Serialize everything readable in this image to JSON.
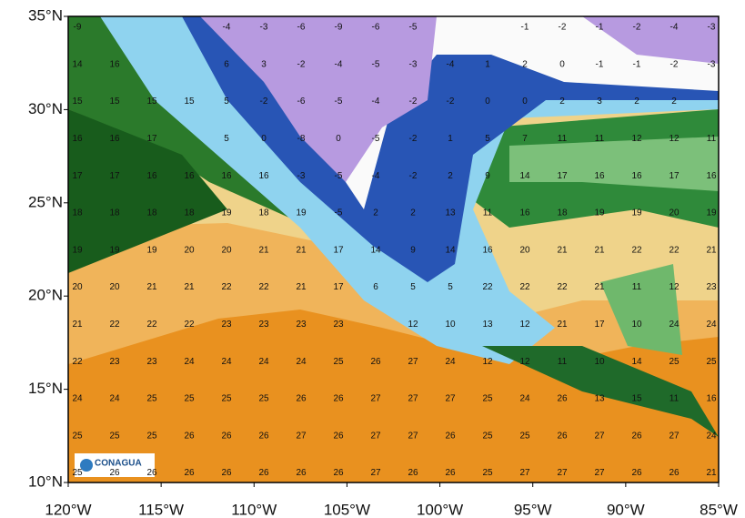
{
  "map": {
    "lat_ticks": [
      "35°N",
      "30°N",
      "25°N",
      "20°N",
      "15°N",
      "10°N"
    ],
    "lon_ticks": [
      "120°W",
      "115°W",
      "110°W",
      "105°W",
      "100°W",
      "95°W",
      "90°W",
      "85°W"
    ],
    "logo": "CONAGUA",
    "grid_values": [
      [
        -9,
        null,
        null,
        null,
        -4,
        -3,
        -6,
        -9,
        -6,
        -5,
        null,
        null,
        -1,
        -2,
        -1,
        -2,
        -4,
        -3
      ],
      [
        14,
        16,
        null,
        null,
        6,
        3,
        -2,
        -4,
        -5,
        -3,
        -4,
        1,
        2,
        0,
        -1,
        -1,
        -2,
        -3
      ],
      [
        15,
        15,
        15,
        15,
        5,
        -2,
        -6,
        -5,
        -4,
        -2,
        -2,
        0,
        0,
        2,
        3,
        2,
        2,
        null
      ],
      [
        16,
        16,
        17,
        null,
        5,
        0,
        -8,
        0,
        -5,
        -2,
        1,
        5,
        7,
        11,
        11,
        12,
        12,
        11
      ],
      [
        17,
        17,
        16,
        16,
        16,
        16,
        -3,
        -5,
        -4,
        -2,
        2,
        9,
        14,
        17,
        16,
        16,
        17,
        16
      ],
      [
        18,
        18,
        18,
        18,
        19,
        18,
        19,
        -5,
        2,
        2,
        13,
        11,
        16,
        18,
        19,
        19,
        20,
        19
      ],
      [
        19,
        19,
        19,
        20,
        20,
        21,
        21,
        17,
        14,
        9,
        14,
        16,
        20,
        21,
        21,
        22,
        22,
        21
      ],
      [
        20,
        20,
        21,
        21,
        22,
        22,
        21,
        17,
        6,
        5,
        5,
        22,
        22,
        22,
        21,
        11,
        12,
        23
      ],
      [
        21,
        22,
        22,
        22,
        23,
        23,
        23,
        23,
        null,
        12,
        10,
        13,
        12,
        21,
        17,
        10,
        24,
        24
      ],
      [
        22,
        23,
        23,
        24,
        24,
        24,
        24,
        25,
        26,
        27,
        24,
        12,
        12,
        11,
        10,
        14,
        25,
        25
      ],
      [
        24,
        24,
        25,
        25,
        25,
        25,
        26,
        26,
        27,
        27,
        27,
        25,
        24,
        26,
        13,
        15,
        11,
        16
      ],
      [
        25,
        25,
        25,
        26,
        26,
        26,
        27,
        26,
        27,
        27,
        26,
        25,
        25,
        26,
        27,
        26,
        27,
        24
      ],
      [
        25,
        26,
        26,
        26,
        26,
        26,
        26,
        26,
        27,
        26,
        26,
        25,
        27,
        27,
        27,
        26,
        26,
        21
      ]
    ]
  }
}
